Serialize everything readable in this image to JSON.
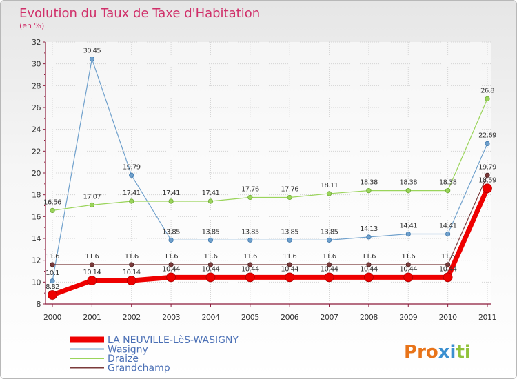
{
  "chart_data": {
    "type": "line",
    "title": "Evolution du Taux de Taxe d'Habitation",
    "subtitle": "(en %)",
    "xlabel": "",
    "ylabel": "",
    "x": [
      "2000",
      "2001",
      "2002",
      "2003",
      "2004",
      "2005",
      "2006",
      "2007",
      "2008",
      "2009",
      "2010",
      "2011"
    ],
    "ylim": [
      8,
      32
    ],
    "yticks": [
      8,
      10,
      12,
      14,
      16,
      18,
      20,
      22,
      24,
      26,
      28,
      30,
      32
    ],
    "grid": true,
    "legend_position": "bottom-left",
    "series": [
      {
        "name": "LA NEUVILLE-LèS-WASIGNY",
        "color": "#ee0000",
        "values": [
          8.82,
          10.14,
          10.14,
          10.44,
          10.44,
          10.44,
          10.44,
          10.44,
          10.44,
          10.44,
          10.44,
          18.59
        ],
        "labels": [
          "8.82",
          "10.14",
          "10.14",
          "10.44",
          "10.44",
          "10.44",
          "10.44",
          "10.44",
          "10.44",
          "10.44",
          "10.44",
          "18.59"
        ]
      },
      {
        "name": "Wasigny",
        "color": "#6fa0cc",
        "values": [
          10.1,
          30.45,
          19.79,
          13.85,
          13.85,
          13.85,
          13.85,
          13.85,
          14.13,
          14.41,
          14.41,
          22.69
        ],
        "labels": [
          "10.1",
          "30.45",
          "19.79",
          "13.85",
          "13.85",
          "13.85",
          "13.85",
          "13.85",
          "14.13",
          "14.41",
          "14.41",
          "22.69"
        ]
      },
      {
        "name": "Draize",
        "color": "#9ad45a",
        "values": [
          16.56,
          17.07,
          17.41,
          17.41,
          17.41,
          17.76,
          17.76,
          18.11,
          18.38,
          18.38,
          18.38,
          26.8
        ],
        "labels": [
          "16.56",
          "17.07",
          "17.41",
          "17.41",
          "17.41",
          "17.76",
          "17.76",
          "18.11",
          "18.38",
          "18.38",
          "18.38",
          "26.8"
        ]
      },
      {
        "name": "Grandchamp",
        "color": "#7a3a3a",
        "values": [
          11.6,
          11.6,
          11.6,
          11.6,
          11.6,
          11.6,
          11.6,
          11.6,
          11.6,
          11.6,
          11.6,
          19.79
        ],
        "labels": [
          "11.6",
          "11.6",
          "11.6",
          "11.6",
          "11.6",
          "11.6",
          "11.6",
          "11.6",
          "11.6",
          "11.6",
          "11.6",
          "19.79"
        ]
      }
    ]
  },
  "logo": {
    "text": "Proxiti",
    "letter_colors": [
      "#e8741a",
      "#e8741a",
      "#e8741a",
      "#3a8fd0",
      "#3a8fd0",
      "#90c23a",
      "#90c23a"
    ]
  }
}
